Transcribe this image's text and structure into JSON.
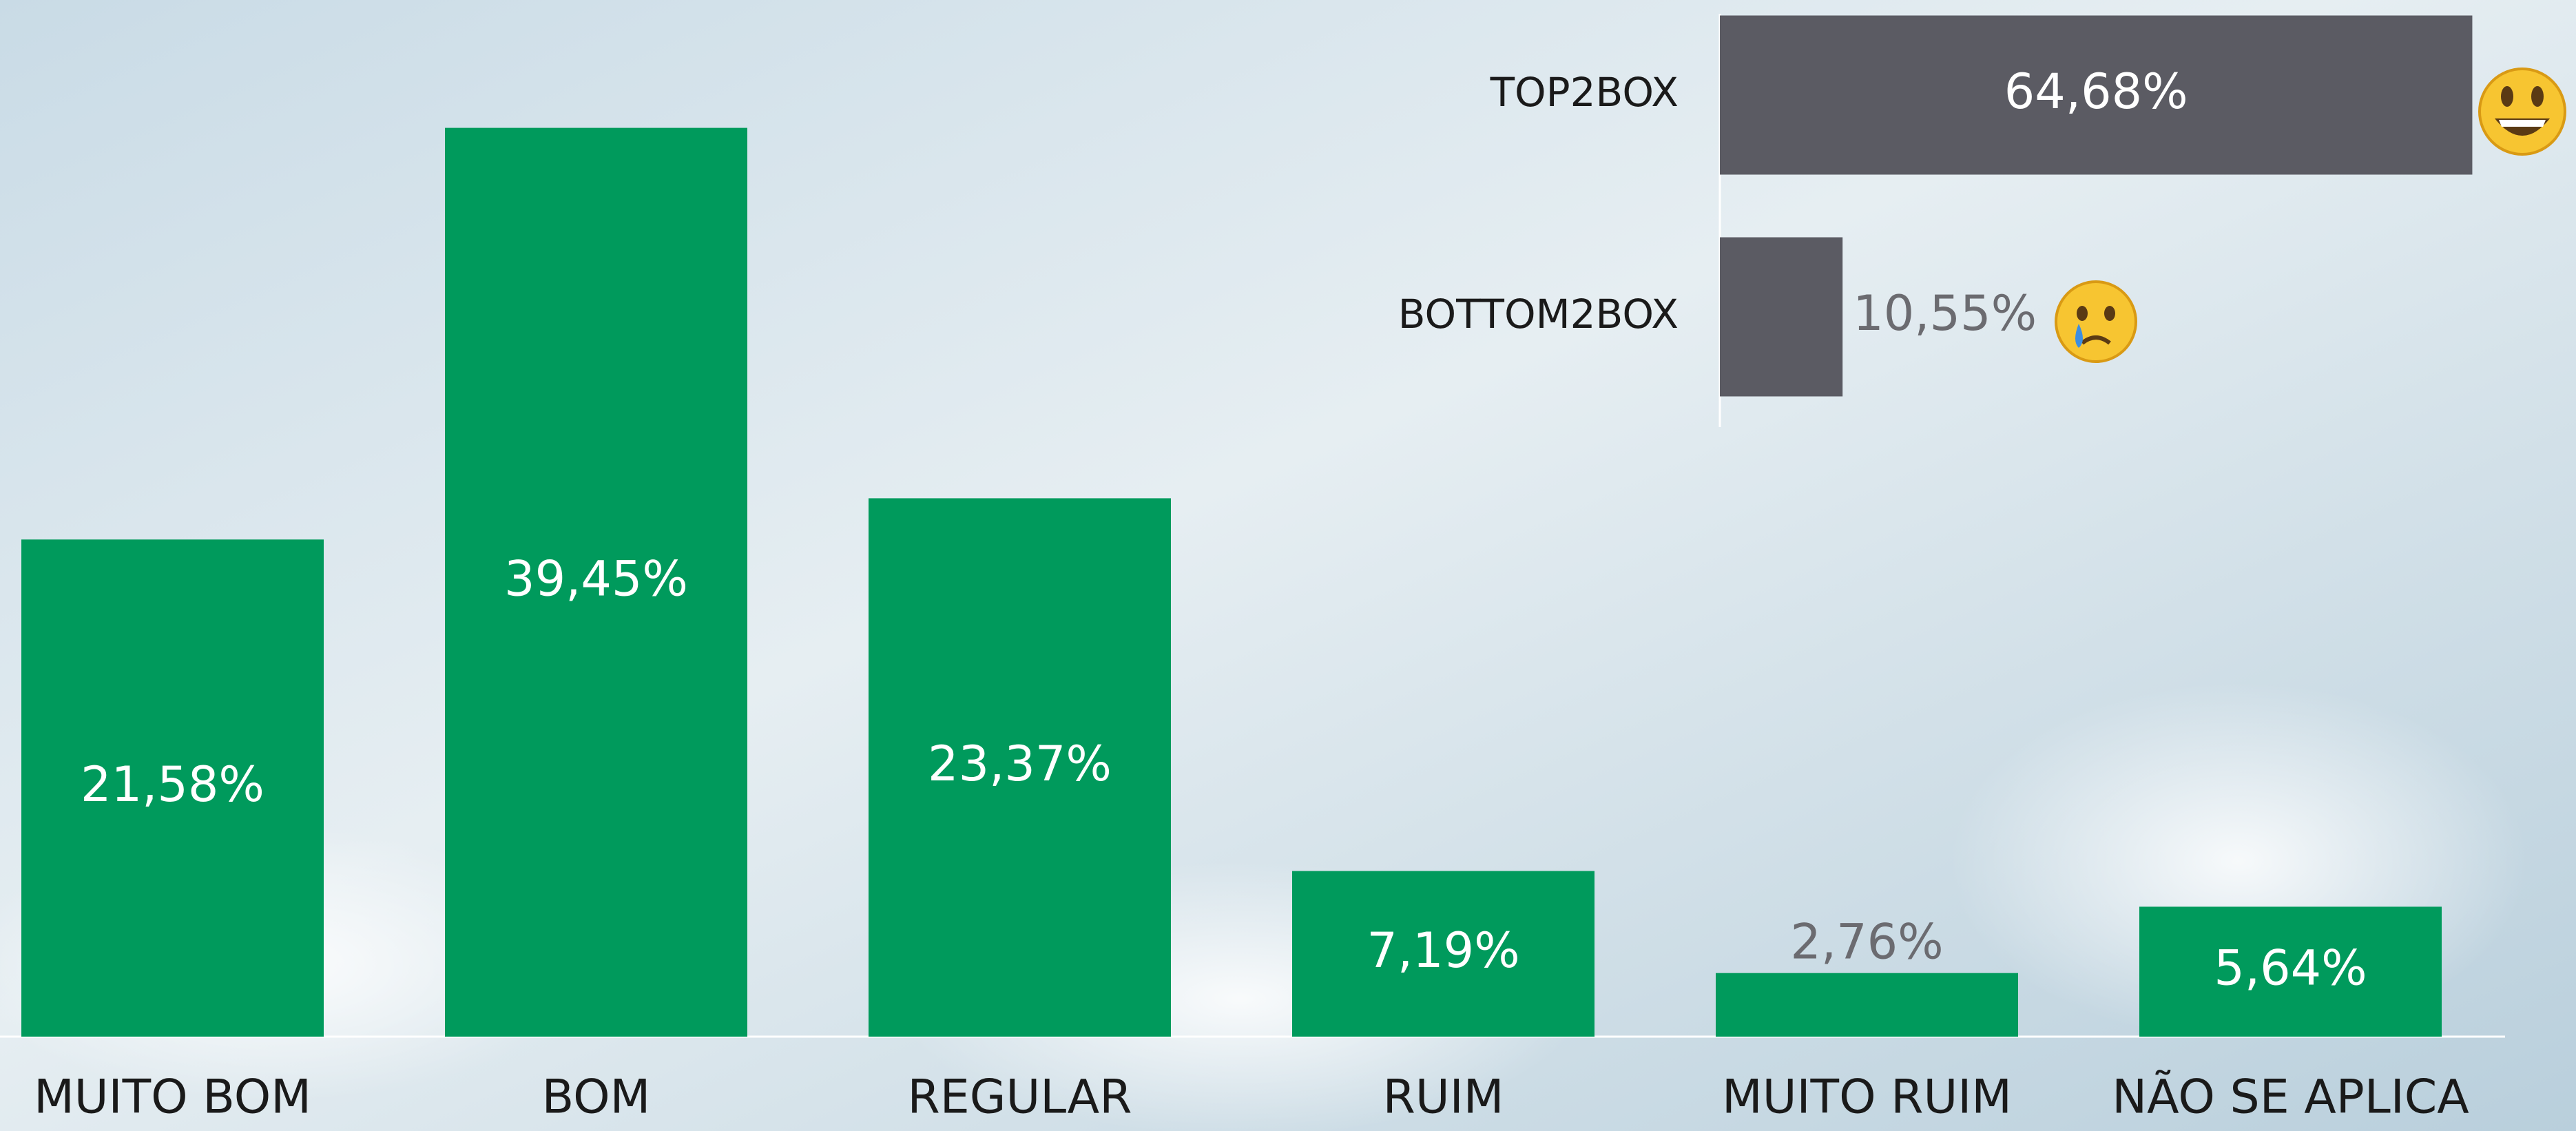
{
  "chart_data": [
    {
      "type": "bar",
      "categories": [
        "MUITO BOM",
        "BOM",
        "REGULAR",
        "RUIM",
        "MUITO RUIM",
        "NÃO SE APLICA"
      ],
      "values": [
        21.58,
        39.45,
        23.37,
        7.19,
        2.76,
        5.64
      ],
      "value_labels": [
        "21,58%",
        "39,45%",
        "23,37%",
        "7,19%",
        "2,76%",
        "5,64%"
      ],
      "color": "#009a5c",
      "ylim": [
        0,
        45
      ]
    },
    {
      "type": "hbar",
      "categories": [
        "TOP2BOX",
        "BOTTOM2BOX"
      ],
      "values": [
        64.68,
        10.55
      ],
      "value_labels": [
        "64,68%",
        "10,55%"
      ],
      "color": "#5b5b63",
      "xlim": [
        0,
        70
      ]
    }
  ]
}
